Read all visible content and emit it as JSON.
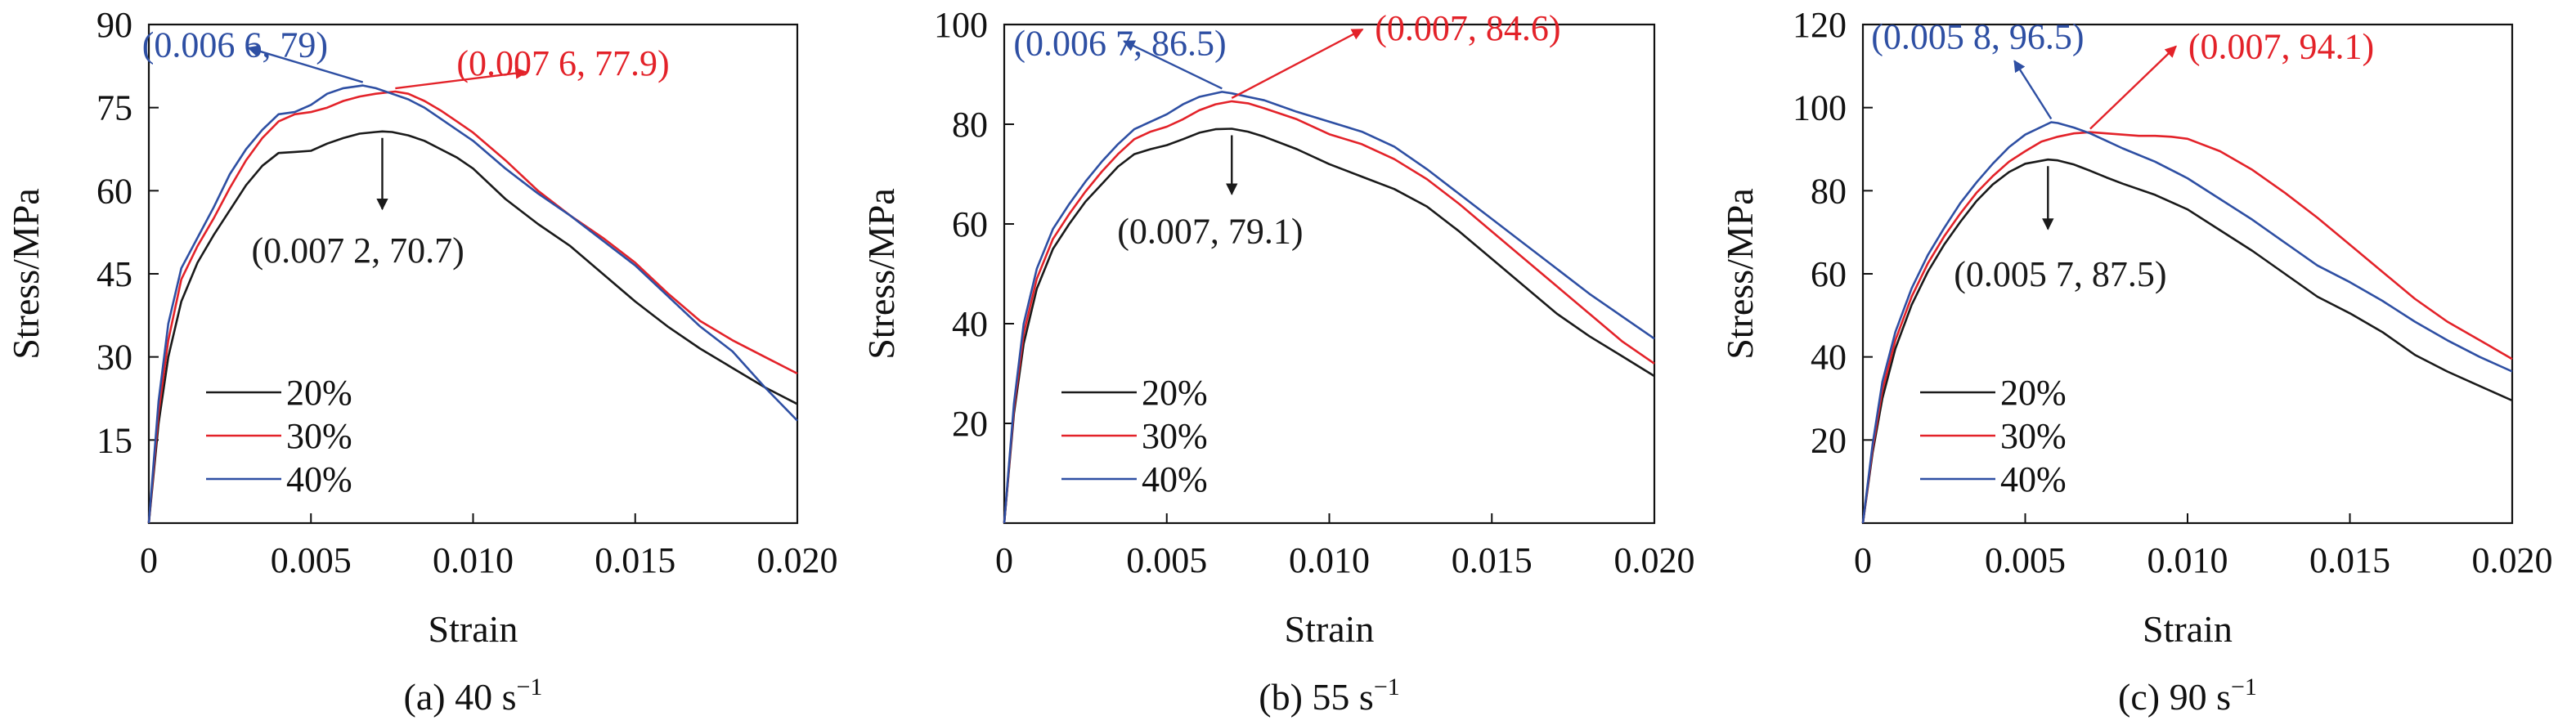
{
  "colors": {
    "black": "#1a1a1a",
    "red": "#e32229",
    "blue": "#2e4fa3",
    "axis": "#111111"
  },
  "chart_data": [
    {
      "type": "line",
      "caption": "(a) 40 s",
      "caption_sup": "−1",
      "xlabel": "Strain",
      "ylabel": "Stress/MPa",
      "xlim": [
        0,
        0.02
      ],
      "ylim": [
        0,
        90
      ],
      "xticks": [
        0,
        0.005,
        0.01,
        0.015,
        0.02
      ],
      "xtick_labels": [
        "0",
        "0.005",
        "0.010",
        "0.015",
        "0.020"
      ],
      "yticks": [
        15,
        30,
        45,
        60,
        75,
        90
      ],
      "ytick_labels": [
        "15",
        "30",
        "45",
        "60",
        "75",
        "90"
      ],
      "legend_position": "bottom-left",
      "series": [
        {
          "name": "20%",
          "color": "black",
          "x": [
            0,
            0.0003,
            0.0006,
            0.001,
            0.0015,
            0.002,
            0.0025,
            0.003,
            0.0035,
            0.004,
            0.0045,
            0.005,
            0.0055,
            0.006,
            0.0065,
            0.007,
            0.0072,
            0.0075,
            0.008,
            0.0085,
            0.009,
            0.0095,
            0.01,
            0.011,
            0.012,
            0.013,
            0.014,
            0.015,
            0.016,
            0.017,
            0.018,
            0.019,
            0.02
          ],
          "y": [
            0,
            18,
            30,
            40,
            47,
            52,
            56.5,
            61,
            64.5,
            66.8,
            67,
            67.2,
            68.5,
            69.5,
            70.3,
            70.6,
            70.7,
            70.6,
            70,
            69,
            67.5,
            66,
            64,
            58.5,
            54,
            50,
            45,
            40,
            35.5,
            31.5,
            28,
            24.5,
            21.5
          ]
        },
        {
          "name": "30%",
          "color": "red",
          "x": [
            0,
            0.0003,
            0.0006,
            0.001,
            0.0015,
            0.002,
            0.0025,
            0.003,
            0.0035,
            0.004,
            0.0045,
            0.005,
            0.0055,
            0.006,
            0.0065,
            0.007,
            0.0076,
            0.008,
            0.0085,
            0.009,
            0.0095,
            0.01,
            0.011,
            0.012,
            0.013,
            0.014,
            0.015,
            0.016,
            0.017,
            0.018,
            0.019,
            0.02
          ],
          "y": [
            0,
            20,
            33,
            44,
            50,
            55,
            60.5,
            65.5,
            69.5,
            72.5,
            73.8,
            74.2,
            75,
            76.2,
            77,
            77.5,
            77.9,
            77.5,
            76.2,
            74.5,
            72.5,
            70.5,
            65.5,
            60,
            55.5,
            51.5,
            47,
            41.5,
            36.5,
            33,
            30,
            27
          ]
        },
        {
          "name": "40%",
          "color": "blue",
          "x": [
            0,
            0.0003,
            0.0006,
            0.001,
            0.0015,
            0.002,
            0.0025,
            0.003,
            0.0035,
            0.004,
            0.0045,
            0.005,
            0.0055,
            0.006,
            0.0066,
            0.007,
            0.0075,
            0.008,
            0.0085,
            0.009,
            0.0095,
            0.01,
            0.011,
            0.012,
            0.013,
            0.014,
            0.015,
            0.016,
            0.017,
            0.018,
            0.019,
            0.02
          ],
          "y": [
            0,
            22,
            36,
            46,
            51.5,
            57,
            63,
            67.5,
            71,
            73.8,
            74.2,
            75.5,
            77.5,
            78.5,
            79,
            78.5,
            77.5,
            76.5,
            75,
            73,
            71,
            69,
            64,
            59.5,
            55.5,
            51,
            46.5,
            41,
            35.5,
            31,
            24.5,
            18.5
          ]
        }
      ],
      "annotations": [
        {
          "text": "(0.007 2, 70.7)",
          "color": "black",
          "point": [
            0.0072,
            70.7
          ]
        },
        {
          "text": "(0.007 6, 77.9)",
          "color": "red",
          "point": [
            0.0076,
            77.9
          ]
        },
        {
          "text": "(0.006 6, 79)",
          "color": "blue",
          "point": [
            0.0066,
            79
          ]
        }
      ]
    },
    {
      "type": "line",
      "caption": "(b) 55 s",
      "caption_sup": "−1",
      "xlabel": "Strain",
      "ylabel": "Stress/MPa",
      "xlim": [
        0,
        0.02
      ],
      "ylim": [
        0,
        100
      ],
      "xticks": [
        0,
        0.005,
        0.01,
        0.015,
        0.02
      ],
      "xtick_labels": [
        "0",
        "0.005",
        "0.010",
        "0.015",
        "0.020"
      ],
      "yticks": [
        20,
        40,
        60,
        80,
        100
      ],
      "ytick_labels": [
        "20",
        "40",
        "60",
        "80",
        "100"
      ],
      "legend_position": "bottom-left",
      "series": [
        {
          "name": "20%",
          "color": "black",
          "x": [
            0,
            0.0003,
            0.0006,
            0.001,
            0.0015,
            0.002,
            0.0025,
            0.003,
            0.0035,
            0.004,
            0.0045,
            0.005,
            0.0055,
            0.006,
            0.0065,
            0.007,
            0.0075,
            0.008,
            0.009,
            0.01,
            0.011,
            0.012,
            0.013,
            0.014,
            0.015,
            0.016,
            0.017,
            0.018,
            0.019,
            0.02
          ],
          "y": [
            0,
            22,
            36,
            47,
            55,
            60,
            64.5,
            68,
            71.5,
            74,
            75,
            75.8,
            77,
            78.3,
            79,
            79.1,
            78.5,
            77.5,
            75,
            72,
            69.5,
            67,
            63.5,
            58.5,
            53,
            47.5,
            42,
            37.5,
            33.5,
            29.5
          ]
        },
        {
          "name": "30%",
          "color": "red",
          "x": [
            0,
            0.0003,
            0.0006,
            0.001,
            0.0015,
            0.002,
            0.0025,
            0.003,
            0.0035,
            0.004,
            0.0045,
            0.005,
            0.0055,
            0.006,
            0.0065,
            0.007,
            0.0075,
            0.008,
            0.009,
            0.01,
            0.011,
            0.012,
            0.013,
            0.014,
            0.015,
            0.016,
            0.017,
            0.018,
            0.019,
            0.02
          ],
          "y": [
            0,
            23,
            38,
            49,
            57,
            62,
            66.5,
            70.5,
            74,
            77,
            78.5,
            79.5,
            81,
            82.8,
            84,
            84.6,
            84.2,
            83.2,
            81,
            78,
            76,
            73,
            69,
            64,
            58.5,
            53,
            47.5,
            42,
            36.5,
            32
          ]
        },
        {
          "name": "40%",
          "color": "blue",
          "x": [
            0,
            0.0003,
            0.0006,
            0.001,
            0.0015,
            0.002,
            0.0025,
            0.003,
            0.0035,
            0.004,
            0.0045,
            0.005,
            0.0055,
            0.006,
            0.0067,
            0.007,
            0.0075,
            0.008,
            0.009,
            0.01,
            0.011,
            0.012,
            0.013,
            0.014,
            0.015,
            0.016,
            0.017,
            0.018,
            0.019,
            0.02
          ],
          "y": [
            0,
            24,
            40,
            51,
            59,
            64,
            68.5,
            72.5,
            76,
            79,
            80.5,
            82,
            84,
            85.5,
            86.5,
            86.2,
            85.5,
            84.8,
            82.5,
            80.5,
            78.5,
            75.5,
            71,
            66,
            61,
            56,
            51,
            46,
            41.5,
            37
          ]
        }
      ],
      "annotations": [
        {
          "text": "(0.007, 79.1)",
          "color": "black",
          "point": [
            0.007,
            79.1
          ]
        },
        {
          "text": "(0.007, 84.6)",
          "color": "red",
          "point": [
            0.007,
            84.6
          ]
        },
        {
          "text": "(0.006 7, 86.5)",
          "color": "blue",
          "point": [
            0.0067,
            86.5
          ]
        }
      ]
    },
    {
      "type": "line",
      "caption": "(c) 90 s",
      "caption_sup": "−1",
      "xlabel": "Strain",
      "ylabel": "Stress/MPa",
      "xlim": [
        0,
        0.02
      ],
      "ylim": [
        0,
        120
      ],
      "xticks": [
        0,
        0.005,
        0.01,
        0.015,
        0.02
      ],
      "xtick_labels": [
        "0",
        "0.005",
        "0.010",
        "0.015",
        "0.020"
      ],
      "yticks": [
        20,
        40,
        60,
        80,
        100,
        120
      ],
      "ytick_labels": [
        "20",
        "40",
        "60",
        "80",
        "100",
        "120"
      ],
      "legend_position": "bottom-left",
      "series": [
        {
          "name": "20%",
          "color": "black",
          "x": [
            0,
            0.0003,
            0.0006,
            0.001,
            0.0015,
            0.002,
            0.0025,
            0.003,
            0.0035,
            0.004,
            0.0045,
            0.005,
            0.0057,
            0.006,
            0.0065,
            0.007,
            0.0075,
            0.008,
            0.009,
            0.01,
            0.011,
            0.012,
            0.013,
            0.014,
            0.015,
            0.016,
            0.017,
            0.018,
            0.019,
            0.02
          ],
          "y": [
            0,
            17,
            30,
            42,
            52.5,
            60.5,
            67,
            72.5,
            77.5,
            81.5,
            84.5,
            86.5,
            87.5,
            87.3,
            86.3,
            84.8,
            83.2,
            81.7,
            79,
            75.5,
            70.5,
            65.5,
            60,
            54.5,
            50.5,
            46,
            40.5,
            36.5,
            33,
            29.5
          ]
        },
        {
          "name": "30%",
          "color": "red",
          "x": [
            0,
            0.0003,
            0.0006,
            0.001,
            0.0015,
            0.002,
            0.0025,
            0.003,
            0.0035,
            0.004,
            0.0045,
            0.005,
            0.0055,
            0.006,
            0.0065,
            0.007,
            0.0075,
            0.008,
            0.0085,
            0.009,
            0.0095,
            0.01,
            0.011,
            0.012,
            0.013,
            0.014,
            0.015,
            0.016,
            0.017,
            0.018,
            0.019,
            0.02
          ],
          "y": [
            0,
            18,
            32,
            44,
            54.5,
            62.5,
            69,
            74.5,
            79.5,
            83.5,
            87,
            89.5,
            91.8,
            93,
            93.8,
            94.1,
            93.8,
            93.5,
            93.2,
            93.2,
            93,
            92.5,
            89.5,
            85,
            79.5,
            73.5,
            67,
            60.5,
            54,
            48.5,
            44,
            39.5
          ]
        },
        {
          "name": "40%",
          "color": "blue",
          "x": [
            0,
            0.0003,
            0.0006,
            0.001,
            0.0015,
            0.002,
            0.0025,
            0.003,
            0.0035,
            0.004,
            0.0045,
            0.005,
            0.0058,
            0.006,
            0.0065,
            0.007,
            0.0075,
            0.008,
            0.009,
            0.01,
            0.011,
            0.012,
            0.013,
            0.014,
            0.015,
            0.016,
            0.017,
            0.018,
            0.019,
            0.02
          ],
          "y": [
            0,
            19,
            34,
            46,
            56.5,
            64.5,
            71,
            77,
            82,
            86.5,
            90.5,
            93.5,
            96.5,
            96.3,
            95.2,
            93.8,
            92,
            90.2,
            87,
            83,
            78,
            73,
            67.5,
            62,
            58,
            53.5,
            48.5,
            44,
            40,
            36.5
          ]
        }
      ],
      "annotations": [
        {
          "text": "(0.005 7, 87.5)",
          "color": "black",
          "point": [
            0.0057,
            87.5
          ]
        },
        {
          "text": "(0.007, 94.1)",
          "color": "red",
          "point": [
            0.007,
            94.1
          ]
        },
        {
          "text": "(0.005 8, 96.5)",
          "color": "blue",
          "point": [
            0.0058,
            96.5
          ]
        }
      ]
    }
  ]
}
